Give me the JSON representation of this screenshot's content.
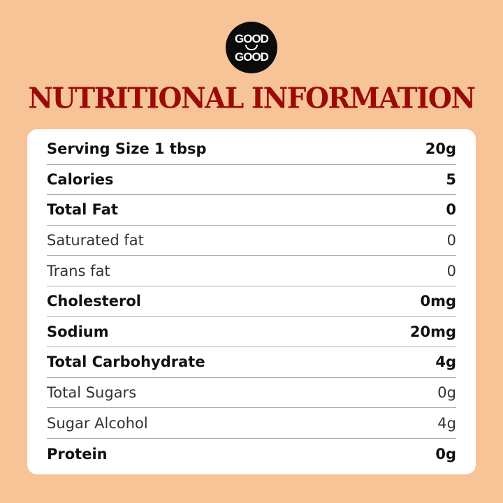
{
  "brand": {
    "logo_text": "GOOD GOOD"
  },
  "title": "NUTRITIONAL INFORMATION",
  "colors": {
    "background": "#F7C497",
    "title": "#9B0A08",
    "card": "#FFFFFF"
  },
  "rows": [
    {
      "label": "Serving Size 1 tbsp",
      "value": "20g",
      "bold": true
    },
    {
      "label": "Calories",
      "value": "5",
      "bold": true
    },
    {
      "label": "Total Fat",
      "value": "0",
      "bold": true
    },
    {
      "label": "Saturated fat",
      "value": "0",
      "bold": false
    },
    {
      "label": "Trans fat",
      "value": "0",
      "bold": false
    },
    {
      "label": "Cholesterol",
      "value": "0mg",
      "bold": true
    },
    {
      "label": "Sodium",
      "value": "20mg",
      "bold": true
    },
    {
      "label": "Total Carbohydrate",
      "value": "4g",
      "bold": true
    },
    {
      "label": "Total Sugars",
      "value": "0g",
      "bold": false
    },
    {
      "label": "Sugar Alcohol",
      "value": "4g",
      "bold": false
    },
    {
      "label": "Protein",
      "value": "0g",
      "bold": true
    }
  ]
}
